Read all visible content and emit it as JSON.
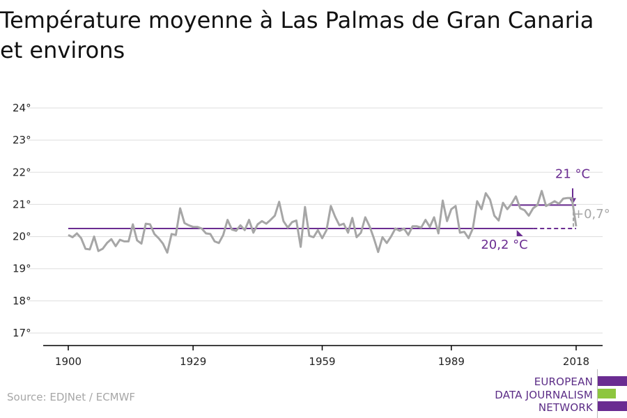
{
  "title_lines": [
    "Température moyenne à Las Palmas de Gran Canaria",
    "et environs"
  ],
  "source": "Source: EDJNet / ECMWF",
  "logo": {
    "lines": [
      "EUROPEAN",
      "DATA JOURNALISM",
      "NETWORK"
    ],
    "colors": [
      "#6a2c91",
      "#8dc63f",
      "#6a2c91"
    ]
  },
  "colors": {
    "series": "#a6a6a6",
    "accent": "#6a2c91",
    "grid": "#dddddd",
    "axis": "#000000"
  },
  "chart_data": {
    "type": "line",
    "title": "Température moyenne à Las Palmas de Gran Canaria et environs",
    "xlim": [
      1900,
      2018
    ],
    "ylim": [
      17,
      24
    ],
    "xticks": [
      1900,
      1929,
      1959,
      1989,
      2018
    ],
    "yticks": [
      17,
      18,
      19,
      20,
      21,
      22,
      23,
      24
    ],
    "ytick_labels": [
      "17°",
      "18°",
      "19°",
      "20°",
      "21°",
      "22°",
      "23°",
      "24°"
    ],
    "grid": true,
    "series": [
      {
        "x": [
          1900,
          1901,
          1902,
          1903,
          1904,
          1905,
          1906,
          1907,
          1908,
          1909,
          1910,
          1911,
          1912,
          1913,
          1914,
          1915,
          1916,
          1917,
          1918,
          1919,
          1920,
          1921,
          1922,
          1923,
          1924,
          1925,
          1926,
          1927,
          1928,
          1929,
          1930,
          1931,
          1932,
          1933,
          1934,
          1935,
          1936,
          1937,
          1938,
          1939,
          1940,
          1941,
          1942,
          1943,
          1944,
          1945,
          1946,
          1947,
          1948,
          1949,
          1950,
          1951,
          1952,
          1953,
          1954,
          1955,
          1956,
          1957,
          1958,
          1959,
          1960,
          1961,
          1962,
          1963,
          1964,
          1965,
          1966,
          1967,
          1968,
          1969,
          1970,
          1971,
          1972,
          1973,
          1974,
          1975,
          1976,
          1977,
          1978,
          1979,
          1980,
          1981,
          1982,
          1983,
          1984,
          1985,
          1986,
          1987,
          1988,
          1989,
          1990,
          1991,
          1992,
          1993,
          1994,
          1995,
          1996,
          1997,
          1998,
          1999,
          2000,
          2001,
          2002,
          2003,
          2004,
          2005,
          2006,
          2007,
          2008,
          2009,
          2010,
          2011,
          2012,
          2013,
          2014,
          2015,
          2016,
          2017,
          2018
        ],
        "values": [
          20.05,
          19.98,
          20.1,
          19.95,
          19.62,
          19.6,
          20.0,
          19.55,
          19.62,
          19.8,
          19.92,
          19.7,
          19.9,
          19.85,
          19.85,
          20.38,
          19.88,
          19.78,
          20.4,
          20.38,
          20.08,
          19.95,
          19.78,
          19.5,
          20.08,
          20.05,
          20.88,
          20.42,
          20.35,
          20.3,
          20.3,
          20.25,
          20.1,
          20.08,
          19.85,
          19.8,
          20.05,
          20.52,
          20.22,
          20.18,
          20.35,
          20.2,
          20.52,
          20.12,
          20.38,
          20.48,
          20.4,
          20.52,
          20.65,
          21.08,
          20.48,
          20.28,
          20.45,
          20.5,
          19.68,
          20.92,
          20.02,
          19.98,
          20.2,
          19.95,
          20.2,
          20.95,
          20.62,
          20.35,
          20.4,
          20.12,
          20.58,
          19.98,
          20.12,
          20.6,
          20.32,
          19.95,
          19.52,
          19.98,
          19.8,
          20.0,
          20.25,
          20.18,
          20.25,
          20.05,
          20.32,
          20.32,
          20.28,
          20.52,
          20.3,
          20.6,
          20.1,
          21.12,
          20.48,
          20.85,
          20.95,
          20.12,
          20.15,
          19.95,
          20.25,
          21.1,
          20.85,
          21.35,
          21.15,
          20.65,
          20.5,
          21.05,
          20.85,
          21.02,
          21.25,
          20.88,
          20.82,
          20.65,
          20.88,
          20.98,
          21.42,
          20.95,
          21.02,
          21.1,
          21.02,
          21.18,
          21.2,
          21.2,
          20.32
        ]
      }
    ],
    "reference_lines": [
      {
        "label": "20,2 °C",
        "value": 20.25,
        "x_start": 1900,
        "x_end": 2008,
        "dashed_to": 2018
      },
      {
        "label": "21 °C",
        "value": 20.98,
        "x_start": 2003,
        "x_end": 2018
      }
    ],
    "difference_label": "+0,7°"
  }
}
